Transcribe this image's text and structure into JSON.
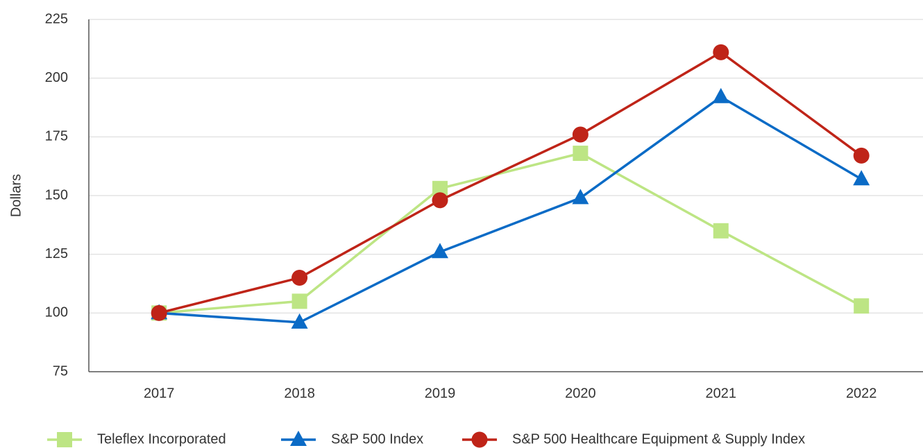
{
  "chart_data": {
    "type": "line",
    "y_label": "Dollars",
    "categories": [
      "2017",
      "2018",
      "2019",
      "2020",
      "2021",
      "2022"
    ],
    "series": [
      {
        "name": "Teleflex Incorporated",
        "color": "#bde584",
        "marker": "square",
        "values": [
          100,
          105,
          153,
          168,
          135,
          103
        ]
      },
      {
        "name": "S&P 500 Index",
        "color": "#0b6bc6",
        "marker": "triangle",
        "values": [
          100,
          96,
          126,
          149,
          192,
          157
        ]
      },
      {
        "name": "S&P 500 Healthcare Equipment & Supply Index",
        "color": "#bf2418",
        "marker": "circle",
        "values": [
          100,
          115,
          148,
          176,
          211,
          167
        ]
      }
    ],
    "ylim": [
      75,
      225
    ],
    "yticks": [
      75,
      100,
      125,
      150,
      175,
      200,
      225
    ],
    "grid": true,
    "legend": "bottom"
  }
}
